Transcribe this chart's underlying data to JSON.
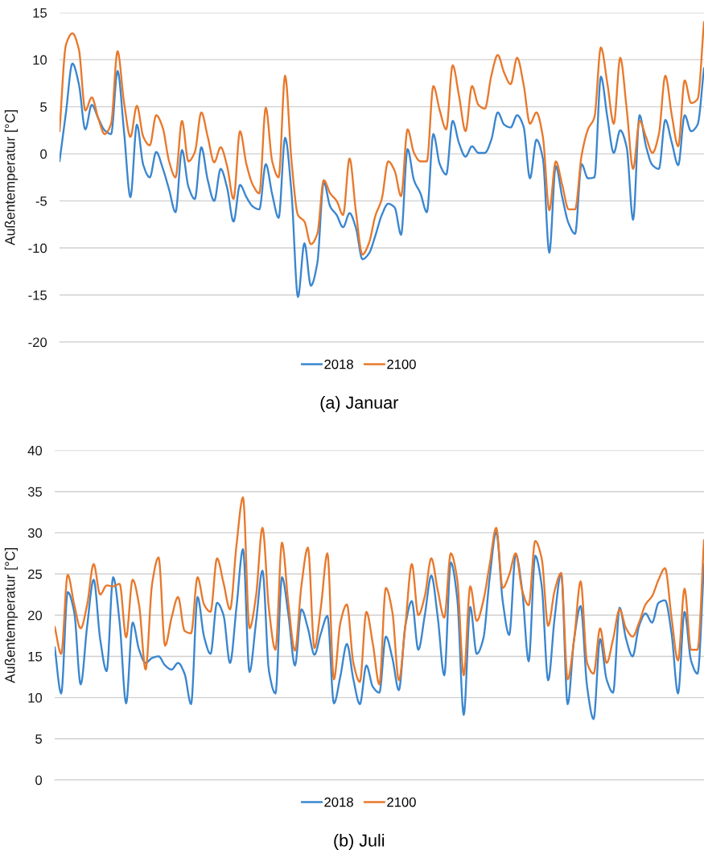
{
  "chart_data": [
    {
      "type": "line",
      "title": "(a) Januar",
      "ylabel": "Außentemperatur [°C]",
      "categories": [
        null,
        null,
        null,
        null,
        null,
        null,
        null,
        null,
        null,
        null,
        null,
        null,
        null,
        null,
        null,
        null,
        null,
        null,
        null,
        null,
        null,
        null,
        null,
        null,
        null,
        null,
        null,
        null,
        null,
        null,
        null,
        null,
        null,
        null,
        null,
        null,
        null,
        null,
        null,
        null,
        null,
        null,
        null,
        null,
        null,
        null,
        null,
        null,
        null,
        null,
        null,
        null,
        null,
        null,
        null,
        null,
        null,
        null,
        null,
        null,
        null,
        null,
        null,
        null,
        null,
        null,
        null,
        null,
        null,
        null,
        null,
        null,
        null,
        null,
        null,
        null,
        null,
        null,
        null,
        null,
        null,
        null,
        null,
        null,
        null,
        null,
        null,
        null,
        null,
        null,
        null,
        null,
        null,
        null,
        null,
        null,
        null,
        null,
        null,
        null,
        null
      ],
      "series": [
        {
          "name": "2018",
          "color": "#3a86cf",
          "values": [
            -0.8,
            4.4,
            9.6,
            7.4,
            2.6,
            5.2,
            3.8,
            2.5,
            2.1,
            8.8,
            2.4,
            -4.6,
            3.1,
            -1.2,
            -2.5,
            0.2,
            -1.5,
            -3.8,
            -6.2,
            0.4,
            -3.5,
            -4.8,
            0.7,
            -2.8,
            -5.0,
            -1.6,
            -3.6,
            -7.2,
            -3.3,
            -4.6,
            -5.6,
            -5.9,
            -1.1,
            -4.3,
            -6.8,
            1.7,
            -4.2,
            -15.2,
            -9.5,
            -14.0,
            -11.6,
            -3.0,
            -5.6,
            -6.5,
            -7.8,
            -6.3,
            -7.9,
            -11.2,
            -10.6,
            -8.7,
            -6.5,
            -5.3,
            -5.7,
            -8.6,
            0.5,
            -2.8,
            -4.2,
            -6.2,
            2.1,
            -1.1,
            -2.2,
            3.5,
            1.1,
            -0.3,
            0.8,
            0.1,
            0.1,
            1.5,
            4.4,
            3.1,
            2.8,
            4.1,
            2.9,
            -2.6,
            1.5,
            -0.5,
            -10.5,
            -1.3,
            -4.6,
            -7.4,
            -8.5,
            -1.1,
            -2.6,
            -2.5,
            8.2,
            3.9,
            0.1,
            2.5,
            0.7,
            -7.0,
            4.1,
            0.8,
            -1.2,
            -1.6,
            3.6,
            1.2,
            -1.2,
            4.1,
            2.4,
            3.1,
            9.1
          ]
        },
        {
          "name": "2100",
          "color": "#e8792c",
          "values": [
            2.4,
            11.6,
            12.8,
            11.1,
            4.6,
            6.0,
            3.8,
            2.1,
            3.2,
            10.9,
            5.5,
            1.8,
            5.1,
            1.8,
            0.9,
            4.1,
            2.8,
            -0.8,
            -2.5,
            3.5,
            -0.8,
            0.2,
            4.4,
            1.8,
            -0.9,
            0.7,
            -1.3,
            -4.8,
            2.4,
            -1.1,
            -3.3,
            -4.2,
            4.9,
            -0.8,
            -2.5,
            8.3,
            -0.8,
            -6.5,
            -7.2,
            -9.6,
            -8.5,
            -2.8,
            -4.2,
            -5.0,
            -6.5,
            -0.5,
            -6.2,
            -10.7,
            -9.5,
            -6.6,
            -4.8,
            -0.8,
            -1.8,
            -4.5,
            2.6,
            0.1,
            -0.8,
            -0.8,
            7.2,
            4.6,
            2.6,
            9.4,
            6.1,
            2.4,
            7.2,
            5.2,
            4.8,
            8.3,
            10.5,
            8.6,
            7.4,
            10.2,
            7.4,
            3.2,
            4.4,
            1.8,
            -6.0,
            -0.8,
            -3.3,
            -5.9,
            -5.9,
            -0.2,
            2.6,
            3.9,
            11.3,
            7.5,
            3.2,
            10.2,
            4.8,
            -1.6,
            3.5,
            1.8,
            0.1,
            2.1,
            8.3,
            4.1,
            0.8,
            7.8,
            5.4,
            5.8,
            14.0
          ]
        }
      ],
      "ylim": [
        -20,
        15
      ],
      "yticks": [
        -20,
        -15,
        -10,
        -5,
        0,
        5,
        10,
        15
      ],
      "grid": "y",
      "legend": "bottom"
    },
    {
      "type": "line",
      "title": "(b) Juli",
      "ylabel": "Außentemperatur [°C]",
      "categories": [
        null,
        null,
        null,
        null,
        null,
        null,
        null,
        null,
        null,
        null,
        null,
        null,
        null,
        null,
        null,
        null,
        null,
        null,
        null,
        null,
        null,
        null,
        null,
        null,
        null,
        null,
        null,
        null,
        null,
        null,
        null,
        null,
        null,
        null,
        null,
        null,
        null,
        null,
        null,
        null,
        null,
        null,
        null,
        null,
        null,
        null,
        null,
        null,
        null,
        null,
        null,
        null,
        null,
        null,
        null,
        null,
        null,
        null,
        null,
        null,
        null,
        null,
        null,
        null,
        null,
        null,
        null,
        null,
        null,
        null,
        null,
        null,
        null,
        null,
        null,
        null,
        null,
        null,
        null,
        null,
        null,
        null,
        null,
        null,
        null,
        null,
        null,
        null,
        null,
        null,
        null,
        null,
        null,
        null,
        null,
        null,
        null,
        null,
        null,
        null,
        null
      ],
      "series": [
        {
          "name": "2018",
          "color": "#3a86cf",
          "values": [
            16.1,
            10.5,
            22.8,
            20.4,
            11.6,
            18.7,
            24.3,
            17.1,
            13.2,
            24.6,
            19.1,
            9.3,
            19.1,
            15.8,
            14.2,
            14.8,
            15.0,
            13.9,
            13.4,
            14.2,
            12.9,
            9.2,
            22.2,
            17.4,
            15.3,
            21.5,
            20.0,
            14.2,
            21.0,
            28.0,
            13.1,
            19.1,
            25.4,
            13.2,
            10.5,
            24.6,
            20.0,
            13.9,
            20.7,
            18.4,
            15.2,
            17.8,
            19.9,
            9.3,
            12.6,
            16.5,
            12.2,
            9.2,
            13.9,
            11.3,
            10.6,
            17.4,
            14.8,
            10.9,
            18.7,
            21.7,
            15.8,
            20.0,
            24.8,
            19.7,
            12.7,
            26.4,
            22.0,
            7.9,
            21.0,
            15.3,
            17.1,
            24.6,
            30.1,
            21.7,
            17.6,
            27.4,
            23.0,
            14.4,
            27.2,
            23.6,
            12.1,
            19.7,
            25.1,
            9.2,
            17.1,
            21.1,
            11.3,
            7.4,
            17.1,
            12.2,
            10.6,
            20.9,
            17.1,
            15.0,
            18.7,
            20.2,
            19.1,
            21.5,
            21.8,
            17.8,
            10.5,
            20.4,
            14.5,
            12.9,
            26.2
          ]
        },
        {
          "name": "2100",
          "color": "#e8792c",
          "values": [
            18.6,
            15.3,
            24.9,
            21.3,
            18.4,
            21.3,
            26.2,
            22.5,
            23.6,
            23.5,
            23.8,
            17.3,
            24.3,
            21.2,
            13.4,
            23.8,
            27.0,
            16.3,
            19.7,
            22.2,
            18.1,
            17.8,
            24.6,
            21.3,
            20.4,
            26.9,
            23.9,
            20.7,
            28.5,
            34.3,
            18.4,
            22.3,
            30.6,
            20.7,
            15.8,
            28.8,
            21.3,
            15.7,
            23.6,
            28.2,
            16.0,
            21.0,
            27.5,
            12.2,
            19.1,
            21.3,
            14.2,
            11.9,
            20.4,
            16.5,
            11.6,
            23.3,
            20.4,
            12.1,
            18.7,
            26.2,
            20.0,
            22.3,
            26.9,
            23.0,
            19.7,
            27.5,
            24.3,
            12.7,
            23.5,
            19.3,
            21.7,
            26.2,
            30.6,
            23.3,
            24.9,
            27.5,
            23.0,
            21.2,
            29.0,
            26.9,
            18.7,
            23.0,
            25.1,
            12.2,
            17.1,
            24.1,
            14.2,
            12.9,
            18.4,
            14.2,
            17.1,
            20.7,
            18.4,
            17.4,
            19.1,
            21.3,
            22.3,
            24.3,
            25.7,
            19.7,
            14.5,
            23.2,
            15.8,
            15.8,
            29.1
          ]
        }
      ],
      "ylim": [
        0,
        40
      ],
      "yticks": [
        0,
        5,
        10,
        15,
        20,
        25,
        30,
        35,
        40
      ],
      "grid": "y",
      "legend": "bottom"
    }
  ]
}
